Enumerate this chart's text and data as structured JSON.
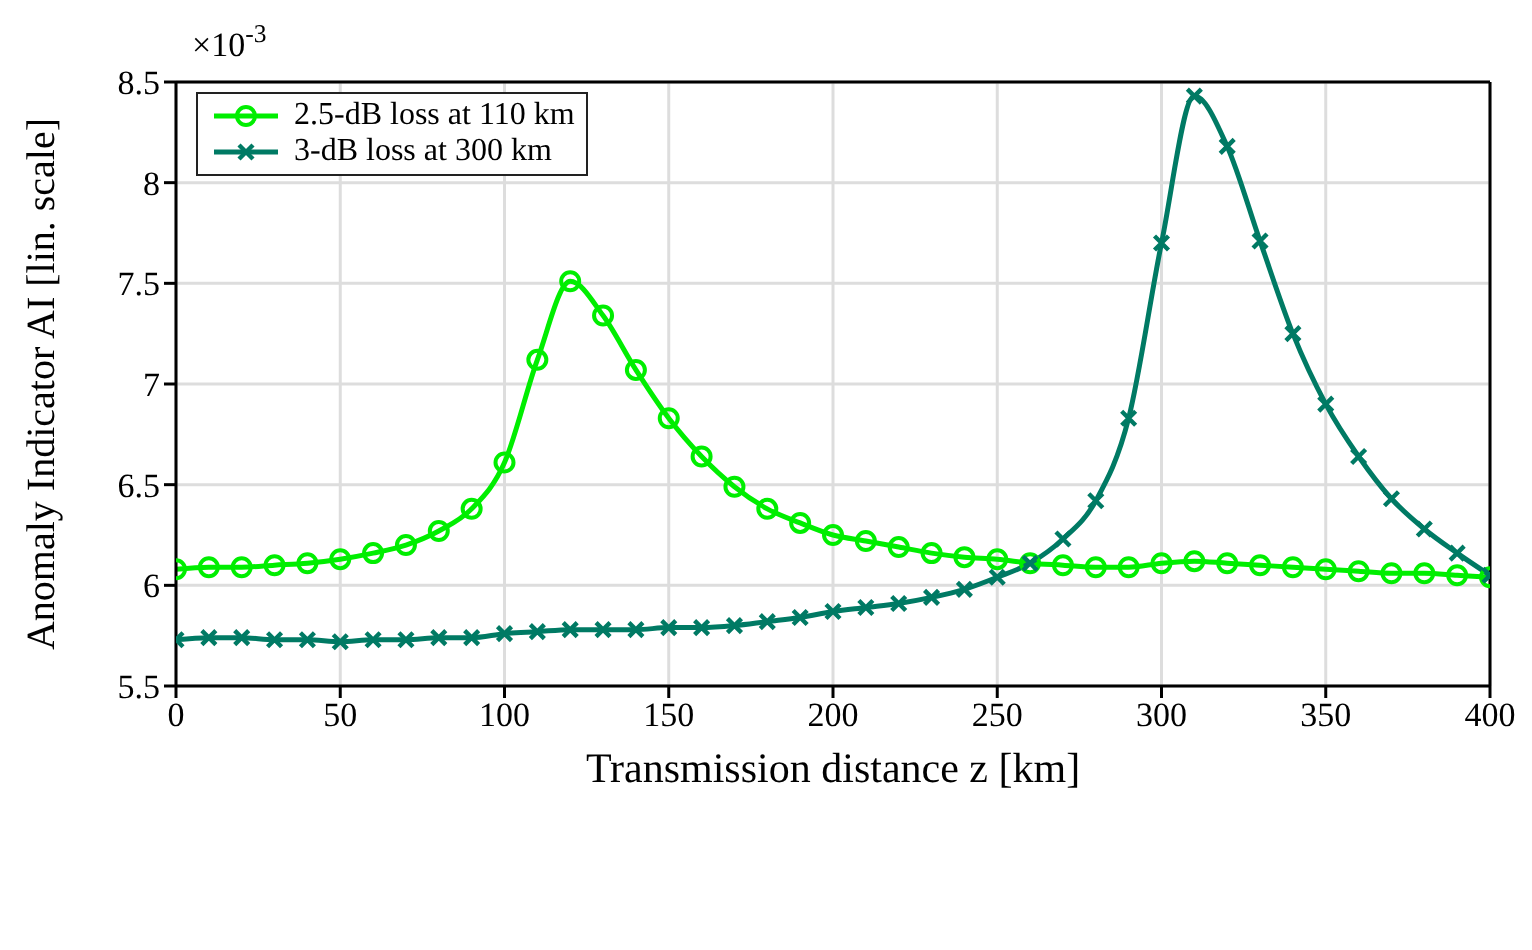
{
  "chart_data": {
    "type": "line",
    "xlabel": "Transmission distance z [km]",
    "ylabel": "Anomaly Indicator AI [lin. scale]",
    "annotations": [
      "×10$^{-3}$"
    ],
    "x": [
      0,
      10,
      20,
      30,
      40,
      50,
      60,
      70,
      80,
      90,
      100,
      110,
      120,
      130,
      140,
      150,
      160,
      170,
      180,
      190,
      200,
      210,
      220,
      230,
      240,
      250,
      260,
      270,
      280,
      290,
      300,
      310,
      320,
      330,
      340,
      350,
      360,
      370,
      380,
      390,
      400
    ],
    "series": [
      {
        "name": "2.5-dB loss at 110 km",
        "color": "#00ee00",
        "marker": "circle",
        "values": [
          6.08,
          6.09,
          6.09,
          6.1,
          6.11,
          6.13,
          6.16,
          6.2,
          6.27,
          6.38,
          6.61,
          7.12,
          7.51,
          7.34,
          7.07,
          6.83,
          6.64,
          6.49,
          6.38,
          6.31,
          6.25,
          6.22,
          6.19,
          6.16,
          6.14,
          6.13,
          6.11,
          6.1,
          6.09,
          6.09,
          6.11,
          6.12,
          6.11,
          6.1,
          6.09,
          6.08,
          6.07,
          6.06,
          6.06,
          6.05,
          6.04
        ]
      },
      {
        "name": "3-dB loss at 300 km",
        "color": "#007a64",
        "marker": "cross",
        "values": [
          5.73,
          5.74,
          5.74,
          5.73,
          5.73,
          5.72,
          5.73,
          5.73,
          5.74,
          5.74,
          5.76,
          5.77,
          5.78,
          5.78,
          5.78,
          5.79,
          5.79,
          5.8,
          5.82,
          5.84,
          5.87,
          5.89,
          5.91,
          5.94,
          5.98,
          6.04,
          6.11,
          6.23,
          6.42,
          6.83,
          7.7,
          8.43,
          8.18,
          7.71,
          7.25,
          6.9,
          6.64,
          6.43,
          6.28,
          6.16,
          6.05
        ]
      }
    ],
    "xlim": [
      0,
      400
    ],
    "xticks": [
      0,
      50,
      100,
      150,
      200,
      250,
      300,
      350,
      400
    ],
    "ylim": [
      5.5,
      8.5
    ],
    "yticks": [
      5.5,
      6,
      6.5,
      7,
      7.5,
      8,
      8.5
    ],
    "grid": true,
    "legend": "top left",
    "line_style": "solid"
  }
}
